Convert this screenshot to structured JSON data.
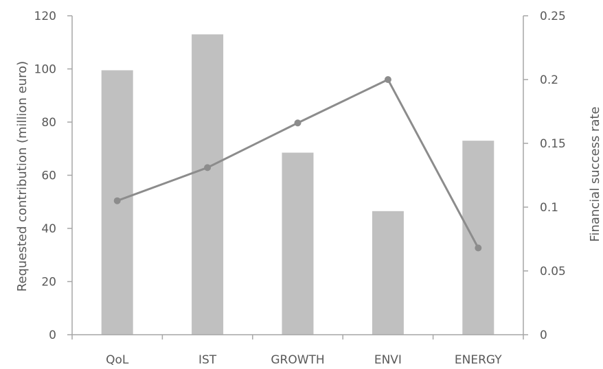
{
  "chart_data": {
    "type": "bar",
    "categories": [
      "QoL",
      "IST",
      "GROWTH",
      "ENVI",
      "ENERGY"
    ],
    "series": [
      {
        "type": "bar",
        "axis": "left",
        "values": [
          99.5,
          113,
          68.5,
          46.5,
          73
        ],
        "color": "#c0c0c0"
      },
      {
        "type": "line",
        "axis": "right",
        "values": [
          0.105,
          0.131,
          0.166,
          0.2,
          0.068
        ],
        "color": "#8c8c8c"
      }
    ],
    "ylabel": "Requested contribution (million euro)",
    "y2label": "Financial success rate",
    "ylim": [
      0,
      120
    ],
    "y2lim": [
      0,
      0.25
    ],
    "yticks": [
      "0",
      "20",
      "40",
      "60",
      "80",
      "100",
      "120"
    ],
    "y2ticks": [
      "0",
      "0.05",
      "0.1",
      "0.15",
      "0.2",
      "0.25"
    ],
    "grid": false,
    "legend": "none"
  }
}
